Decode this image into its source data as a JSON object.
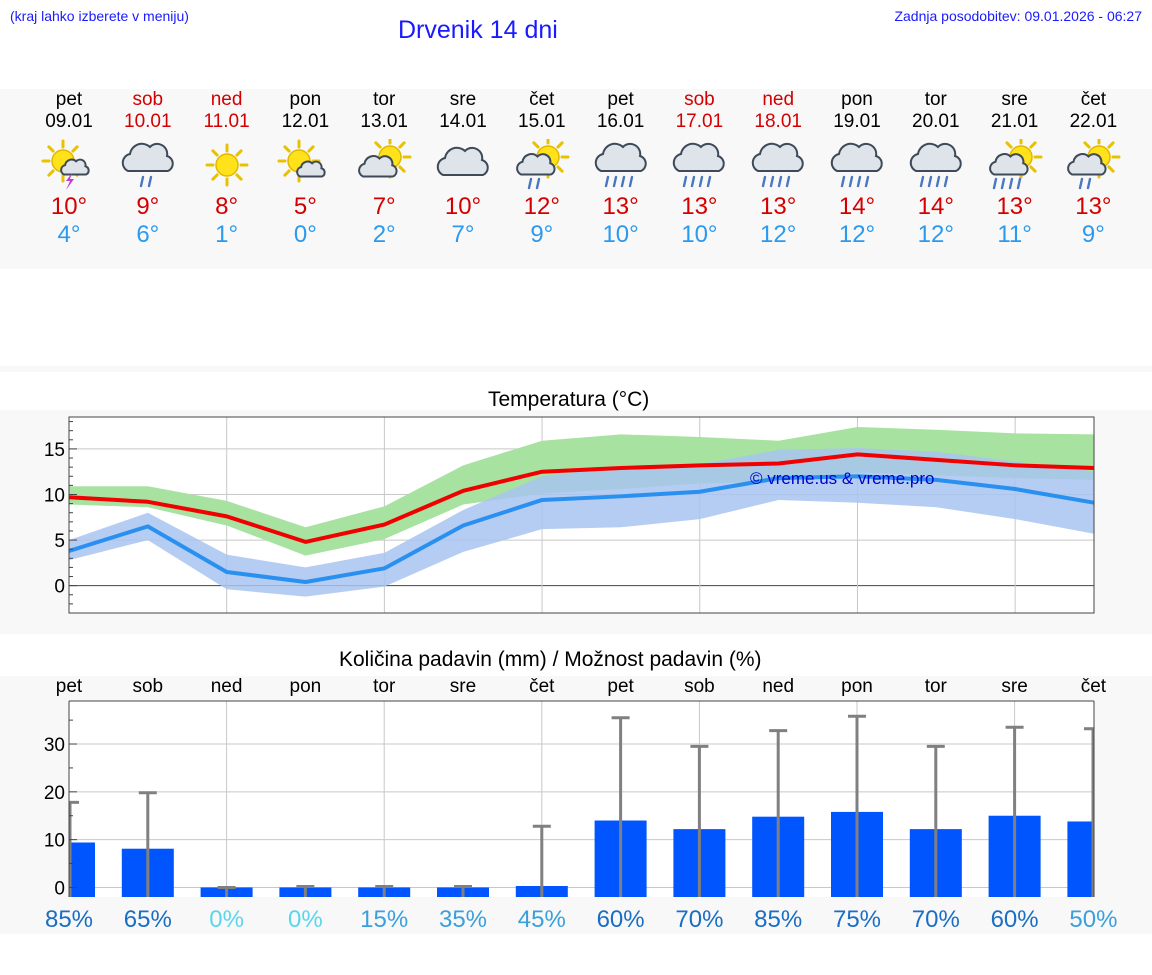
{
  "header": {
    "hint": "(kraj lahko izberete v meniju)",
    "title": "Drvenik 14 dni",
    "updated": "Zadnja posodobitev: 09.01.2026 - 06:27"
  },
  "days": [
    {
      "name": "pet",
      "date": "09.01",
      "weekend": false,
      "icon": "sun-cloud-thunder-icon",
      "max": "10°",
      "min": "4°"
    },
    {
      "name": "sob",
      "date": "10.01",
      "weekend": true,
      "icon": "cloud-rain-icon",
      "max": "9°",
      "min": "6°"
    },
    {
      "name": "ned",
      "date": "11.01",
      "weekend": true,
      "icon": "sun-icon",
      "max": "8°",
      "min": "1°"
    },
    {
      "name": "pon",
      "date": "12.01",
      "weekend": false,
      "icon": "sun-small-cloud-icon",
      "max": "5°",
      "min": "0°"
    },
    {
      "name": "tor",
      "date": "13.01",
      "weekend": false,
      "icon": "sun-cloud-icon",
      "max": "7°",
      "min": "2°"
    },
    {
      "name": "sre",
      "date": "14.01",
      "weekend": false,
      "icon": "cloud-icon",
      "max": "10°",
      "min": "7°"
    },
    {
      "name": "čet",
      "date": "15.01",
      "weekend": false,
      "icon": "sun-cloud-rain-icon",
      "max": "12°",
      "min": "9°"
    },
    {
      "name": "pet",
      "date": "16.01",
      "weekend": false,
      "icon": "cloud-heavy-rain-icon",
      "max": "13°",
      "min": "10°"
    },
    {
      "name": "sob",
      "date": "17.01",
      "weekend": true,
      "icon": "cloud-heavy-rain-icon",
      "max": "13°",
      "min": "10°"
    },
    {
      "name": "ned",
      "date": "18.01",
      "weekend": true,
      "icon": "cloud-heavy-rain-icon",
      "max": "13°",
      "min": "12°"
    },
    {
      "name": "pon",
      "date": "19.01",
      "weekend": false,
      "icon": "cloud-heavy-rain-icon",
      "max": "14°",
      "min": "12°"
    },
    {
      "name": "tor",
      "date": "20.01",
      "weekend": false,
      "icon": "cloud-heavy-rain-icon",
      "max": "14°",
      "min": "12°"
    },
    {
      "name": "sre",
      "date": "21.01",
      "weekend": false,
      "icon": "sun-cloud-heavy-rain-icon",
      "max": "13°",
      "min": "11°"
    },
    {
      "name": "čet",
      "date": "22.01",
      "weekend": false,
      "icon": "sun-cloud-rain-icon",
      "max": "13°",
      "min": "9°"
    }
  ],
  "colors": {
    "weekday": "#000000",
    "weekend": "#d40000",
    "max_temp": "#d40000",
    "min_temp": "#2a9aef",
    "max_band": "#a8e2a0",
    "min_band": "#a8c4f0",
    "overlap": "#78c4b0",
    "max_line": "#f00000",
    "min_line": "#2a90f0",
    "precip_bar": "#0055ff",
    "error_bar": "#808080",
    "watermark": "#0000cc"
  },
  "chart_data": [
    {
      "type": "line",
      "title": "Temperatura (°C)",
      "xlabel": "",
      "ylabel": "",
      "ylim": [
        -3,
        18.5
      ],
      "yticks": [
        0,
        5,
        10,
        15
      ],
      "x": [
        "09.01",
        "10.01",
        "11.01",
        "12.01",
        "13.01",
        "14.01",
        "15.01",
        "16.01",
        "17.01",
        "18.01",
        "19.01",
        "20.01",
        "21.01",
        "22.01"
      ],
      "series": [
        {
          "name": "max",
          "values": [
            9.7,
            9.2,
            7.6,
            4.8,
            6.7,
            10.4,
            12.5,
            12.9,
            13.2,
            13.4,
            14.4,
            13.8,
            13.2,
            12.9
          ]
        },
        {
          "name": "max_low",
          "values": [
            8.9,
            8.6,
            6.6,
            3.3,
            5.1,
            8.9,
            10.1,
            10.6,
            11.2,
            11.4,
            12.4,
            12.1,
            11.8,
            11.6
          ]
        },
        {
          "name": "max_high",
          "values": [
            10.9,
            10.9,
            9.3,
            6.4,
            8.7,
            13.2,
            15.9,
            16.6,
            16.3,
            15.9,
            17.4,
            17.1,
            16.7,
            16.6
          ]
        },
        {
          "name": "min",
          "values": [
            3.8,
            6.5,
            1.5,
            0.4,
            1.9,
            6.6,
            9.4,
            9.8,
            10.3,
            11.8,
            12.0,
            11.6,
            10.6,
            9.1
          ]
        },
        {
          "name": "min_low",
          "values": [
            2.8,
            5.0,
            -0.4,
            -1.2,
            -0.1,
            3.7,
            6.2,
            6.4,
            7.3,
            9.4,
            9.1,
            8.6,
            7.3,
            5.7
          ]
        },
        {
          "name": "min_high",
          "values": [
            5.0,
            8.0,
            3.4,
            2.0,
            3.6,
            8.3,
            12.0,
            13.1,
            13.3,
            14.9,
            15.1,
            14.7,
            13.6,
            12.5
          ]
        }
      ],
      "watermark": "© vreme.us & vreme.pro"
    },
    {
      "type": "bar",
      "title": "Količina padavin (mm) / Možnost padavin (%)",
      "xlabel": "",
      "ylabel": "",
      "ylim": [
        -2,
        39
      ],
      "yticks": [
        0,
        10,
        20,
        30
      ],
      "categories": [
        "pet",
        "sob",
        "ned",
        "pon",
        "tor",
        "sre",
        "čet",
        "pet",
        "sob",
        "ned",
        "pon",
        "tor",
        "sre",
        "čet"
      ],
      "values": [
        9.4,
        8.1,
        0.0,
        0.0,
        0.0,
        0.0,
        0.3,
        14.0,
        12.2,
        14.8,
        15.8,
        12.2,
        15.0,
        13.8
      ],
      "error_max": [
        17.8,
        19.8,
        0.0,
        0.2,
        0.2,
        0.2,
        12.8,
        35.5,
        29.5,
        32.8,
        35.8,
        29.5,
        33.5,
        33.2
      ],
      "probability": [
        "85%",
        "65%",
        "0%",
        "0%",
        "15%",
        "35%",
        "45%",
        "60%",
        "70%",
        "85%",
        "75%",
        "70%",
        "60%",
        "50%"
      ],
      "probability_colors": [
        "#1a6ec4",
        "#1a6ec4",
        "#5ad6ec",
        "#5ad6ec",
        "#3aa0dc",
        "#3aa0dc",
        "#3aa0dc",
        "#1a6ec4",
        "#1a6ec4",
        "#1a6ec4",
        "#1a6ec4",
        "#1a6ec4",
        "#1a6ec4",
        "#3aa0dc"
      ]
    }
  ]
}
